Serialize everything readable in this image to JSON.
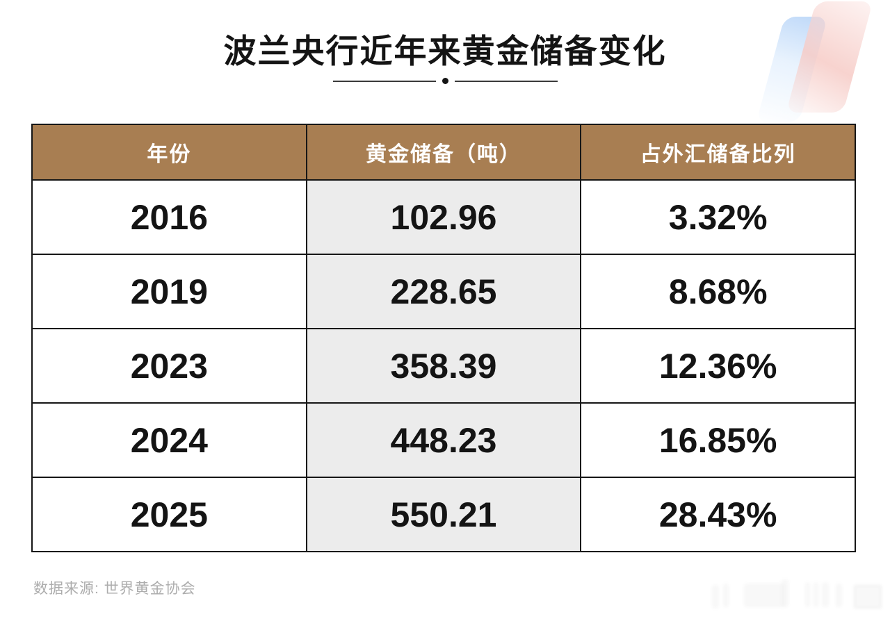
{
  "title": "波兰央行近年来黄金储备变化",
  "table": {
    "headers": [
      "年份",
      "黄金储备（吨）",
      "占外汇储备比列"
    ],
    "rows": [
      [
        "2016",
        "102.96",
        "3.32%"
      ],
      [
        "2019",
        "228.65",
        "8.68%"
      ],
      [
        "2023",
        "358.39",
        "12.36%"
      ],
      [
        "2024",
        "448.23",
        "16.85%"
      ],
      [
        "2025",
        "550.21",
        "28.43%"
      ]
    ]
  },
  "footer": {
    "source": "数据来源: 世界黄金协会"
  },
  "colors": {
    "header_bg": "#A87E52",
    "header_text": "#FFFFFF",
    "alt_cell_bg": "#ECECEC",
    "border": "#161616",
    "footer_text": "#ADADAD",
    "deco_blue": "#BAD6F8",
    "deco_pink": "#F6CBC6"
  },
  "chart_data": {
    "type": "table",
    "title": "波兰央行近年来黄金储备变化",
    "columns": [
      "年份",
      "黄金储备（吨）",
      "占外汇储备比列"
    ],
    "rows": [
      {
        "year": 2016,
        "gold_reserves_tonnes": 102.96,
        "share_of_fx_reserves_pct": 3.32
      },
      {
        "year": 2019,
        "gold_reserves_tonnes": 228.65,
        "share_of_fx_reserves_pct": 8.68
      },
      {
        "year": 2023,
        "gold_reserves_tonnes": 358.39,
        "share_of_fx_reserves_pct": 12.36
      },
      {
        "year": 2024,
        "gold_reserves_tonnes": 448.23,
        "share_of_fx_reserves_pct": 16.85
      },
      {
        "year": 2025,
        "gold_reserves_tonnes": 550.21,
        "share_of_fx_reserves_pct": 28.43
      }
    ],
    "source": "数据来源: 世界黄金协会"
  }
}
